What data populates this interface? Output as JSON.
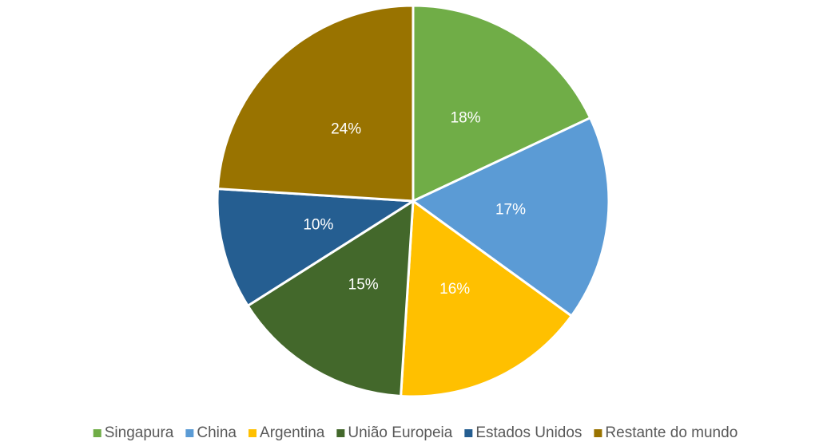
{
  "chart_data": {
    "type": "pie",
    "categories": [
      "Singapura",
      "China",
      "Argentina",
      "União Europeia",
      "Estados Unidos",
      "Restante do mundo"
    ],
    "values": [
      18,
      17,
      16,
      15,
      10,
      24
    ],
    "value_labels": [
      "18%",
      "17%",
      "16%",
      "15%",
      "10%",
      "24%"
    ],
    "colors": [
      "#70ad47",
      "#5b9bd5",
      "#ffc000",
      "#43682b",
      "#255e91",
      "#997300"
    ],
    "legend": "bottom"
  }
}
